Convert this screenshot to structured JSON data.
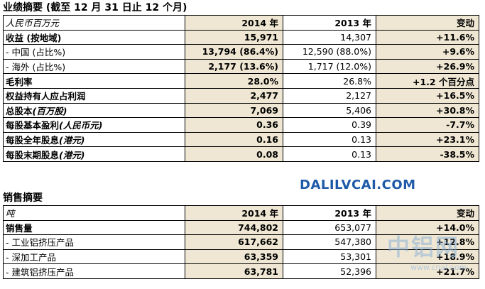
{
  "section1": {
    "title": "业绩摘要 (截至 12 月 31 日止 12 个月)",
    "header": {
      "unit": "人民币百万元",
      "col2014": "2014 年",
      "col2013": "2013 年",
      "change": "变动"
    },
    "rows": [
      {
        "label": "收益 (按地域)",
        "v2014": "15,971",
        "v2013": "14,307",
        "change": "+11.6%"
      },
      {
        "label": "-     中国 (占比%)",
        "v2014": "13,794 (86.4%)",
        "v2013": "12,590 (88.0%)",
        "change": "+9.6%"
      },
      {
        "label": "-     海外 (占比%)",
        "v2014": "2,177 (13.6%)",
        "v2013": "1,717 (12.0%)",
        "change": "+26.9%"
      },
      {
        "label": "毛利率",
        "v2014": "28.0%",
        "v2013": "26.8%",
        "change": "+1.2 个百分点"
      },
      {
        "label": "权益持有人应占利润",
        "v2014": "2,477",
        "v2013": "2,127",
        "change": "+16.5%"
      },
      {
        "label_main": "总股本",
        "label_note": "(百万股)",
        "v2014": "7,069",
        "v2013": "5,406",
        "change": "+30.8%"
      },
      {
        "label_main": "每股基本盈利",
        "label_note": "(人民币元)",
        "v2014": "0.36",
        "v2013": "0.39",
        "change": "-7.7%"
      },
      {
        "label_main": "每股全年股息",
        "label_note": "(港元)",
        "v2014": "0.16",
        "v2013": "0.13",
        "change": "+23.1%"
      },
      {
        "label_main": "每股末期股息",
        "label_note": "(港元)",
        "v2014": "0.08",
        "v2013": "0.13",
        "change": "-38.5%"
      }
    ]
  },
  "watermark_top": "DALILVCAI.COM",
  "section2": {
    "title": "销售摘要",
    "header": {
      "unit": "吨",
      "col2014": "2014 年",
      "col2013": "2013 年",
      "change": "变动"
    },
    "rows": [
      {
        "label": "销售量",
        "v2014": "744,802",
        "v2013": "653,077",
        "change": "+14.0%"
      },
      {
        "label": "-     工业铝挤压产品",
        "v2014": "617,662",
        "v2013": "547,380",
        "change": "+12.8%"
      },
      {
        "label": "-     深加工产品",
        "v2014": "63,359",
        "v2013": "53,301",
        "change": "+18.9%"
      },
      {
        "label": "-     建筑铝挤压产品",
        "v2014": "63,781",
        "v2013": "52,396",
        "change": "+21.7%"
      }
    ]
  },
  "watermark_cn": "中铝网",
  "watermark_url": "www.cnal.com"
}
